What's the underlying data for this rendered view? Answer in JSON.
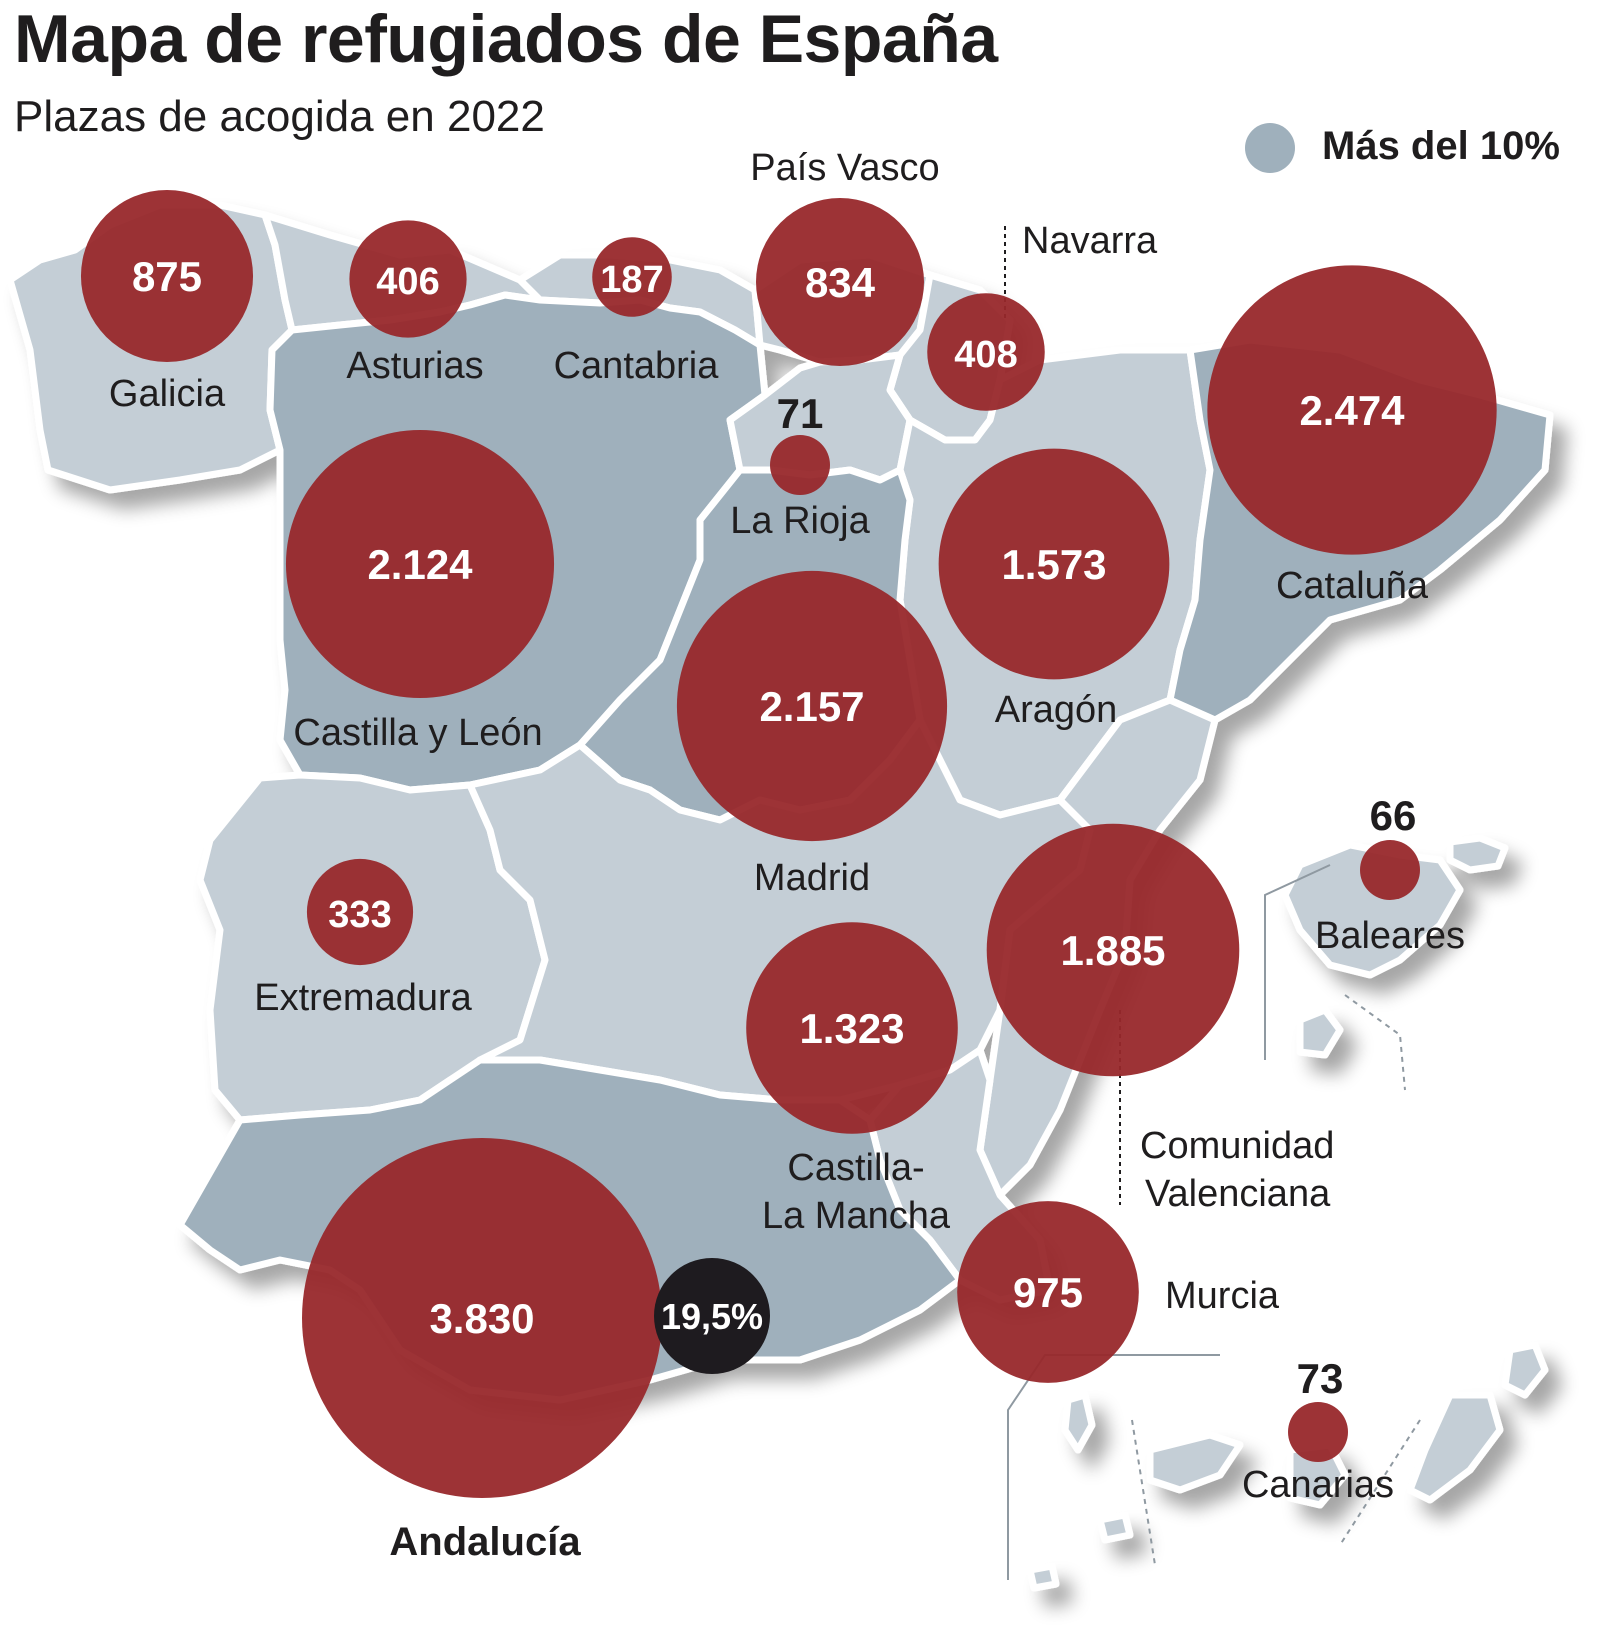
{
  "title": "Mapa de refugiados de España",
  "subtitle": "Plazas de acogida en 2022",
  "legend": {
    "label": "Más del 10%",
    "swatch_color": "#9fb0bc"
  },
  "colors": {
    "region_light": "#c4ced6",
    "region_dark": "#9fb0bc",
    "bubble": "#98282b",
    "highlight_badge": "#1e1b1f",
    "text": "#1f1d1e"
  },
  "chart_data": {
    "type": "bubble-map",
    "title": "Mapa de refugiados de España",
    "subtitle": "Plazas de acogida en 2022",
    "units": "plazas de acogida",
    "regions": [
      {
        "name": "Galicia",
        "value": 875,
        "label": "875",
        "over_10pct": false
      },
      {
        "name": "Asturias",
        "value": 406,
        "label": "406",
        "over_10pct": false
      },
      {
        "name": "Cantabria",
        "value": 187,
        "label": "187",
        "over_10pct": false
      },
      {
        "name": "País Vasco",
        "value": 834,
        "label": "834",
        "over_10pct": false
      },
      {
        "name": "Navarra",
        "value": 408,
        "label": "408",
        "over_10pct": false
      },
      {
        "name": "La Rioja",
        "value": 71,
        "label": "71",
        "over_10pct": false
      },
      {
        "name": "Cataluña",
        "value": 2474,
        "label": "2.474",
        "over_10pct": true
      },
      {
        "name": "Castilla y León",
        "value": 2124,
        "label": "2.124",
        "over_10pct": true
      },
      {
        "name": "Aragón",
        "value": 1573,
        "label": "1.573",
        "over_10pct": false
      },
      {
        "name": "Madrid",
        "value": 2157,
        "label": "2.157",
        "over_10pct": true
      },
      {
        "name": "Extremadura",
        "value": 333,
        "label": "333",
        "over_10pct": false
      },
      {
        "name": "Castilla-La Mancha",
        "value": 1323,
        "label": "1.323",
        "over_10pct": false
      },
      {
        "name": "Comunidad Valenciana",
        "value": 1885,
        "label": "1.885",
        "over_10pct": false
      },
      {
        "name": "Baleares",
        "value": 66,
        "label": "66",
        "over_10pct": false
      },
      {
        "name": "Andalucía",
        "value": 3830,
        "label": "3.830",
        "over_10pct": true,
        "share": "19,5%"
      },
      {
        "name": "Murcia",
        "value": 975,
        "label": "975",
        "over_10pct": false
      },
      {
        "name": "Canarias",
        "value": 73,
        "label": "73",
        "over_10pct": false
      }
    ]
  }
}
